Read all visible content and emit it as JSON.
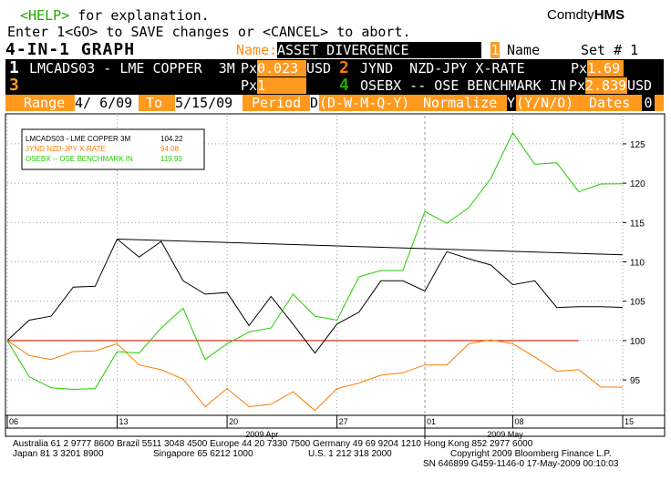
{
  "header": {
    "help_key": "<HELP>",
    "help_text": " for explanation.",
    "brand_prefix": "Comdty",
    "brand_name": "HMS",
    "line2": "Enter 1<GO> to SAVE changes or <CANCEL> to abort."
  },
  "graph_header": {
    "title": "4-IN-1 GRAPH",
    "name_label": "Name:",
    "name_value": "ASSET DIVERGENCE",
    "name_index": "1",
    "name_suffix": "Name",
    "set_label": "Set # 1"
  },
  "securities": [
    {
      "num": "1",
      "ticker": "LMCADS03 - LME COPPER  3M",
      "px_label": "Px",
      "px_value": "0.023",
      "currency": "USD"
    },
    {
      "num": "2",
      "ticker": "JYND  NZD-JPY X-RATE",
      "px_label": "Px",
      "px_value": "1.69",
      "currency": ""
    },
    {
      "num": "3",
      "ticker": "",
      "px_label": "Px",
      "px_value": "1",
      "currency": ""
    },
    {
      "num": "4",
      "ticker": "OSEBX -- OSE BENCHMARK IN",
      "px_label": "Px",
      "px_value": "2.839",
      "currency": "USD"
    }
  ],
  "params": {
    "range_label": "Range",
    "range_from": "4/ 6/09",
    "to_label": "To",
    "range_to": "5/15/09",
    "period_label": "Period",
    "period_value": "D",
    "period_options": "(D-W-M-Q-Y)",
    "normalize_label": "Normalize",
    "normalize_value": "Y",
    "normalize_options": "(Y/N/O)",
    "dates_label": "Dates",
    "dates_value": "0"
  },
  "legend": [
    {
      "name": "LMCADS03 - LME COPPER  3M",
      "value": "104.22",
      "color": "#000000"
    },
    {
      "name": "JYND  NZD-JPY X-RATE",
      "value": "94.08",
      "color": "#ff7a00"
    },
    {
      "name": "OSEBX -- OSE BENCHMARK IN",
      "value": "119.93",
      "color": "#22cc00"
    }
  ],
  "chart_data": {
    "type": "line",
    "x": [
      "04/06",
      "04/07",
      "04/08",
      "04/09",
      "04/13",
      "04/14",
      "04/15",
      "04/16",
      "04/17",
      "04/20",
      "04/21",
      "04/22",
      "04/23",
      "04/24",
      "04/27",
      "04/28",
      "04/29",
      "04/30",
      "05/01",
      "05/04",
      "05/05",
      "05/06",
      "05/07",
      "05/08",
      "05/11",
      "05/12",
      "05/13",
      "05/14",
      "05/15"
    ],
    "x_tick_labels": [
      "06",
      "13",
      "20",
      "27",
      "01",
      "08",
      "15"
    ],
    "month_labels": [
      "2009 Apr",
      "2009 May"
    ],
    "y_ticks": [
      95,
      100,
      105,
      110,
      115,
      120,
      125
    ],
    "ylim": [
      90.5,
      128
    ],
    "grid": "dotted",
    "baseline": 100,
    "series": [
      {
        "name": "LMCADS03 - LME COPPER  3M",
        "color": "#000000",
        "values": [
          100,
          102.6,
          103.1,
          106.8,
          106.9,
          112.9,
          110.6,
          112.6,
          107.6,
          105.9,
          106.1,
          101.9,
          105.6,
          102.1,
          98.4,
          102.1,
          103.6,
          107.6,
          107.6,
          106.3,
          111.3,
          110.4,
          109.6,
          107.1,
          107.6,
          104.2,
          104.3,
          104.3,
          104.22
        ]
      },
      {
        "name": "JYND  NZD-JPY X-RATE",
        "color": "#ff7a00",
        "values": [
          100,
          98.1,
          97.6,
          98.6,
          98.7,
          99.6,
          96.9,
          96.3,
          95.1,
          91.6,
          93.9,
          91.6,
          91.9,
          93.5,
          91.1,
          93.9,
          94.6,
          95.6,
          95.9,
          96.9,
          96.9,
          99.6,
          100.1,
          99.6,
          97.9,
          96.1,
          96.3,
          94.1,
          94.08
        ]
      },
      {
        "name": "OSEBX -- OSE BENCHMARK IN",
        "color": "#22cc00",
        "values": [
          100,
          95.4,
          94.0,
          93.8,
          93.9,
          98.6,
          98.4,
          101.6,
          104.1,
          97.6,
          99.6,
          101.1,
          101.6,
          105.9,
          103.1,
          102.6,
          108.1,
          108.9,
          108.9,
          116.4,
          114.9,
          116.9,
          120.6,
          126.4,
          122.4,
          122.6,
          118.9,
          119.9,
          119.93
        ]
      },
      {
        "name": "",
        "color": "#000000",
        "values": [
          null,
          null,
          null,
          null,
          null,
          112.9,
          null,
          null,
          null,
          null,
          null,
          null,
          null,
          null,
          null,
          null,
          null,
          null,
          null,
          null,
          null,
          null,
          null,
          null,
          null,
          null,
          null,
          null,
          110.9
        ]
      }
    ]
  },
  "footer": {
    "line1": "Australia 61 2 9777 8600 Brazil 5511 3048 4500 Europe 44 20 7330 7500 Germany 49 69 9204 1210 Hong Kong 852 2977 6000",
    "line2_left": "Japan 81 3 3201 8900",
    "line2_mid": "Singapore 65 6212 1000",
    "line2_mid2": "U.S. 1 212 318 2000",
    "line2_right": "Copyright 2009 Bloomberg Finance L.P.",
    "line3": "SN 646899 G459-1146-0 17-May-2009 00:10:03"
  }
}
